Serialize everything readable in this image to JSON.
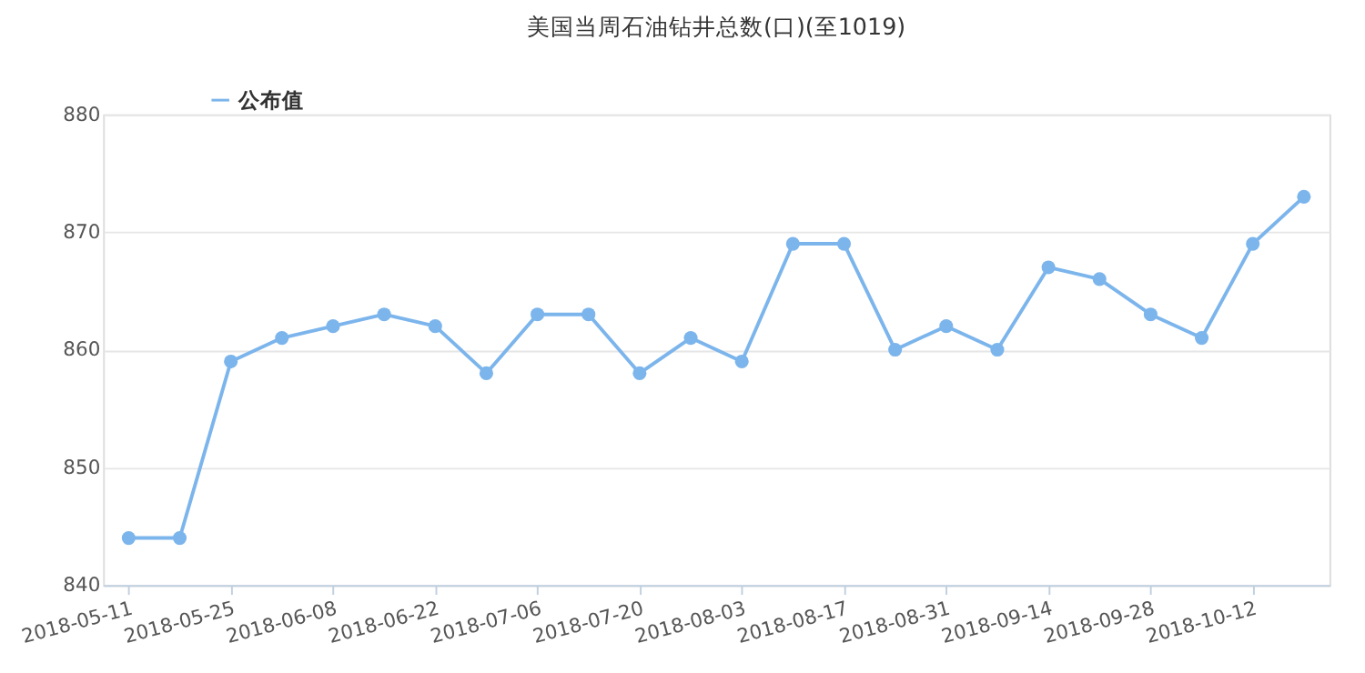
{
  "chart_data": {
    "type": "line",
    "title": "美国当周石油钻井总数(口)(至1019)",
    "categories": [
      "2018-05-11",
      null,
      "2018-05-25",
      null,
      "2018-06-08",
      null,
      "2018-06-22",
      null,
      "2018-07-06",
      null,
      "2018-07-20",
      null,
      "2018-08-03",
      null,
      "2018-08-17",
      null,
      "2018-08-31",
      null,
      "2018-09-14",
      null,
      "2018-09-28",
      null,
      "2018-10-12",
      null
    ],
    "series": [
      {
        "name": "公布值",
        "color": "#7cb5ec",
        "values": [
          844,
          844,
          859,
          861,
          862,
          863,
          862,
          858,
          863,
          863,
          858,
          861,
          859,
          869,
          869,
          860,
          862,
          860,
          867,
          866,
          863,
          861,
          869,
          873
        ]
      }
    ],
    "ylim": [
      840,
      880
    ],
    "yticks": [
      840,
      850,
      860,
      870,
      880
    ],
    "grid": "y",
    "legend": "top left",
    "marker": "circle",
    "line_style": "solid"
  }
}
